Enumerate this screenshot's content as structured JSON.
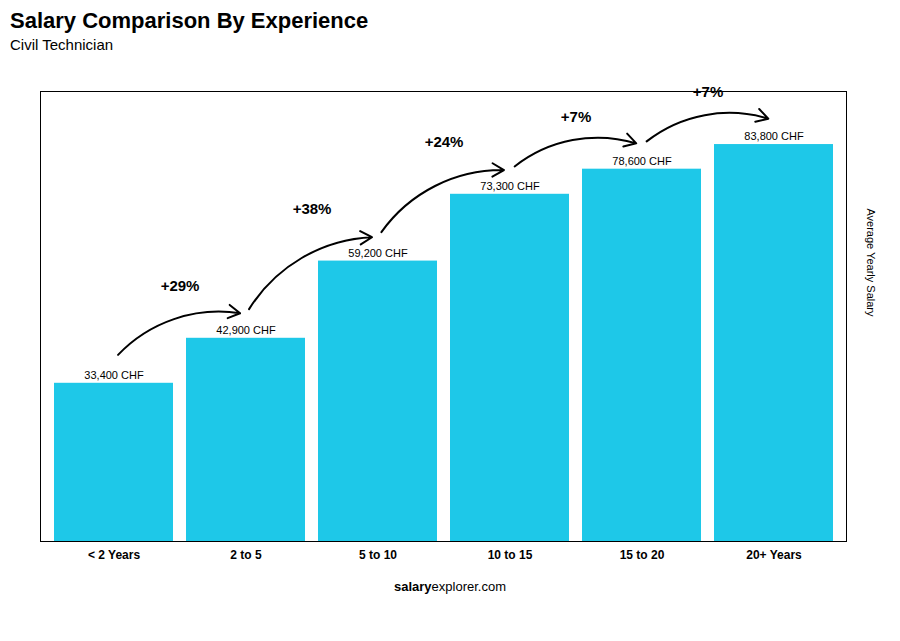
{
  "chart_data": {
    "type": "bar",
    "title": "Salary Comparison By Experience",
    "subtitle": "Civil Technician",
    "ylabel": "Average Yearly Salary",
    "categories": [
      "< 2 Years",
      "2 to 5",
      "5 to 10",
      "10 to 15",
      "15 to 20",
      "20+ Years"
    ],
    "values": [
      33400,
      42900,
      59200,
      73300,
      78600,
      83800
    ],
    "value_labels": [
      "33,400 CHF",
      "42,900 CHF",
      "59,200 CHF",
      "73,300 CHF",
      "78,600 CHF",
      "83,800 CHF"
    ],
    "data_labels": true,
    "color": "#1EC8E8",
    "ylim": [
      0,
      95000
    ],
    "tick_labels": "x",
    "grid": false,
    "annotations": [
      {
        "text": "+29%",
        "from": "< 2 Years",
        "to": "2 to 5"
      },
      {
        "text": "+38%",
        "from": "2 to 5",
        "to": "5 to 10"
      },
      {
        "text": "+24%",
        "from": "5 to 10",
        "to": "10 to 15"
      },
      {
        "text": "+7%",
        "from": "10 to 15",
        "to": "15 to 20"
      },
      {
        "text": "+7%",
        "from": "15 to 20",
        "to": "20+ Years"
      },
      {
        "text": "salary"
      },
      {
        "text": "explorer.com"
      }
    ]
  }
}
